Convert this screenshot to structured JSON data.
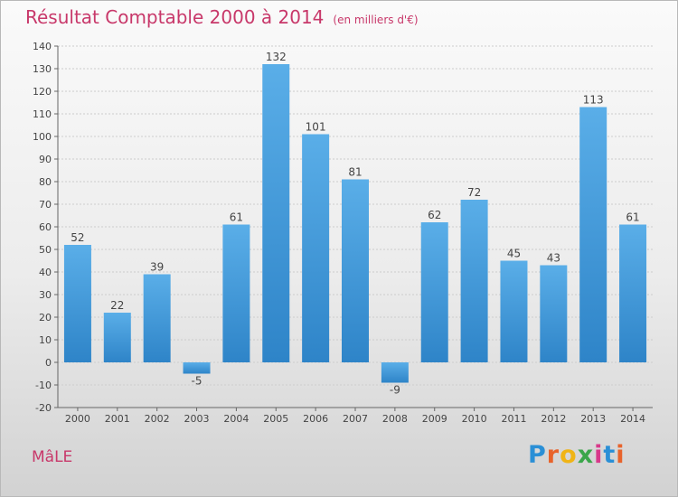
{
  "header": {
    "title": "Résultat Comptable 2000 à 2014",
    "subtitle": "(en milliers d'€)"
  },
  "footer": {
    "commune": "MâLE"
  },
  "brand": {
    "logo_text": "Proxiti",
    "logo_letters": [
      "P",
      "r",
      "o",
      "x",
      "i",
      "t",
      "i"
    ],
    "logo_colors": [
      "#2a8fd6",
      "#e8632b",
      "#f0b416",
      "#3aa64a",
      "#d8398a",
      "#2a8fd6",
      "#e8632b"
    ]
  },
  "colors": {
    "bar_light": "#5aaee8",
    "bar_dark": "#2e84c8",
    "title": "#c8386a",
    "grid": "#cccccc"
  },
  "chart_data": {
    "type": "bar",
    "title": "Résultat Comptable 2000 à 2014",
    "subtitle": "(en milliers d'€)",
    "xlabel": "",
    "ylabel": "",
    "categories": [
      "2000",
      "2001",
      "2002",
      "2003",
      "2004",
      "2005",
      "2006",
      "2007",
      "2008",
      "2009",
      "2010",
      "2011",
      "2012",
      "2013",
      "2014"
    ],
    "values": [
      52,
      22,
      39,
      -5,
      61,
      132,
      101,
      81,
      -9,
      62,
      72,
      45,
      43,
      113,
      61
    ],
    "ylim": [
      -20,
      140
    ],
    "yticks": [
      -20,
      -10,
      0,
      10,
      20,
      30,
      40,
      50,
      60,
      70,
      80,
      90,
      100,
      110,
      120,
      130,
      140
    ],
    "grid": true,
    "data_labels": true
  }
}
